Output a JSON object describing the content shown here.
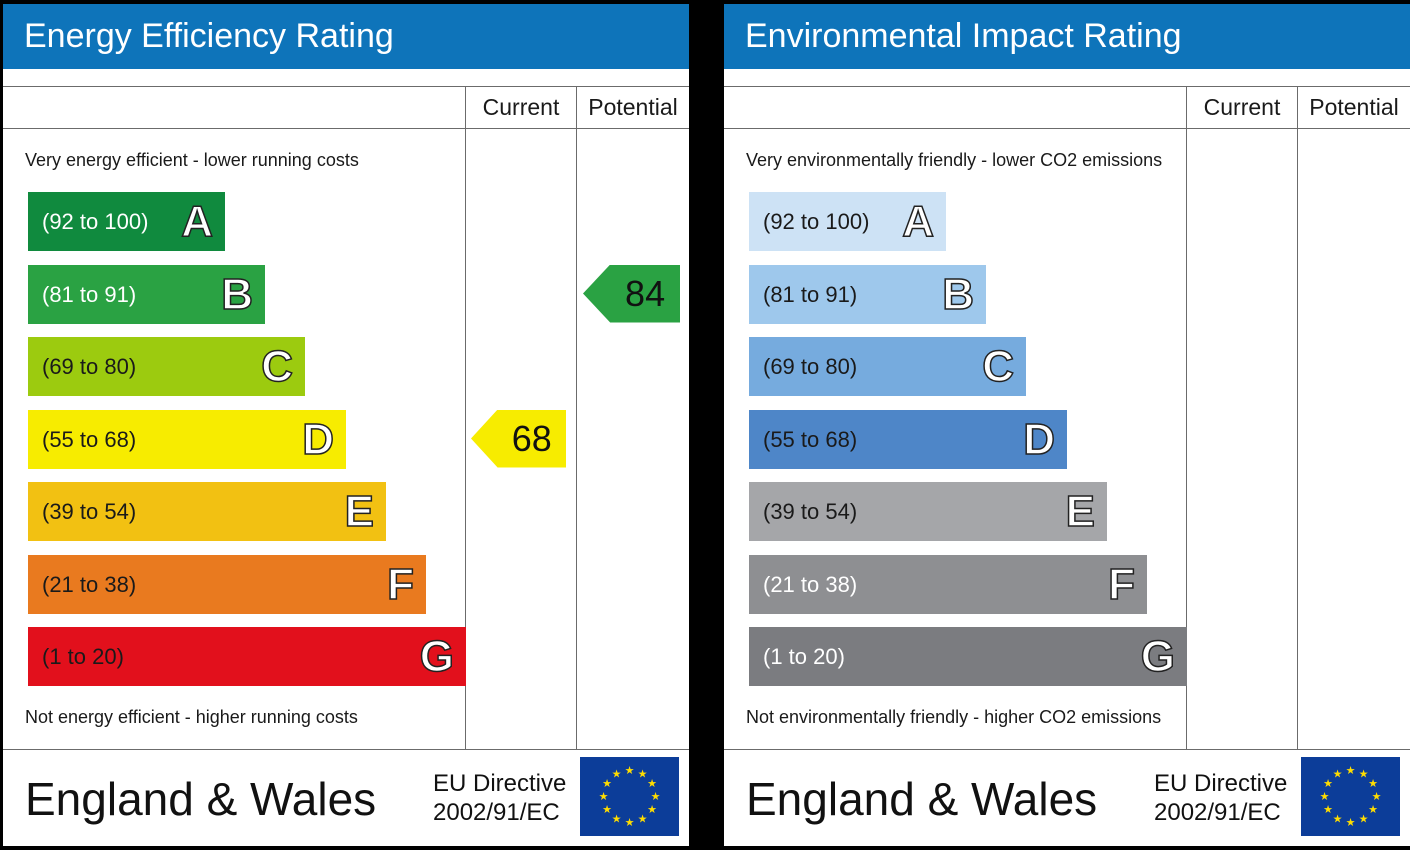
{
  "energy_panel": {
    "title": "Energy Efficiency Rating",
    "col_current": "Current",
    "col_potential": "Potential",
    "top_caption": "Very energy efficient - lower running costs",
    "bottom_caption": "Not energy efficient - higher running costs",
    "footer_region": "England & Wales",
    "footer_directive_line1": "EU Directive",
    "footer_directive_line2": "2002/91/EC"
  },
  "environment_panel": {
    "title": "Environmental Impact Rating",
    "col_current": "Current",
    "col_potential": "Potential",
    "top_caption": "Very environmentally friendly - lower CO2 emissions",
    "bottom_caption": "Not environmentally friendly - higher CO2 emissions",
    "footer_region": "England & Wales",
    "footer_directive_line1": "EU Directive",
    "footer_directive_line2": "2002/91/EC"
  },
  "chart_data": [
    {
      "type": "bar",
      "title": "Energy Efficiency Rating",
      "categories": [
        "A",
        "B",
        "C",
        "D",
        "E",
        "F",
        "G"
      ],
      "ranges": [
        "(92 to 100)",
        "(81 to 91)",
        "(69 to 80)",
        "(55 to 68)",
        "(39 to 54)",
        "(21 to 38)",
        "(1 to 20)"
      ],
      "band_colors": [
        "#108a3e",
        "#2aa243",
        "#9ccb0f",
        "#f7ec00",
        "#f2c112",
        "#e97a1f",
        "#e2101c"
      ],
      "range_text_colors": [
        "#ffffff",
        "#ffffff",
        "#1a1a1a",
        "#1a1a1a",
        "#1a1a1a",
        "#1a1a1a",
        "#1a1a1a"
      ],
      "current": {
        "value": 68,
        "band": "D",
        "color": "#f7ec00"
      },
      "potential": {
        "value": 84,
        "band": "B",
        "color": "#2aa243"
      }
    },
    {
      "type": "bar",
      "title": "Environmental Impact Rating",
      "categories": [
        "A",
        "B",
        "C",
        "D",
        "E",
        "F",
        "G"
      ],
      "ranges": [
        "(92 to 100)",
        "(81 to 91)",
        "(69 to 80)",
        "(55 to 68)",
        "(39 to 54)",
        "(21 to 38)",
        "(1 to 20)"
      ],
      "band_colors": [
        "#cde2f5",
        "#9ec8ec",
        "#76abde",
        "#4e86c8",
        "#a5a6a9",
        "#8e8f92",
        "#7b7c80"
      ],
      "range_text_colors": [
        "#1a1a1a",
        "#1a1a1a",
        "#1a1a1a",
        "#1a1a1a",
        "#1a1a1a",
        "#ffffff",
        "#ffffff"
      ],
      "current": null,
      "potential": null
    }
  ],
  "colors": {
    "header_blue": "#0e74ba",
    "eu_flag_blue": "#0c3d99",
    "eu_star_yellow": "#ffdd00"
  }
}
